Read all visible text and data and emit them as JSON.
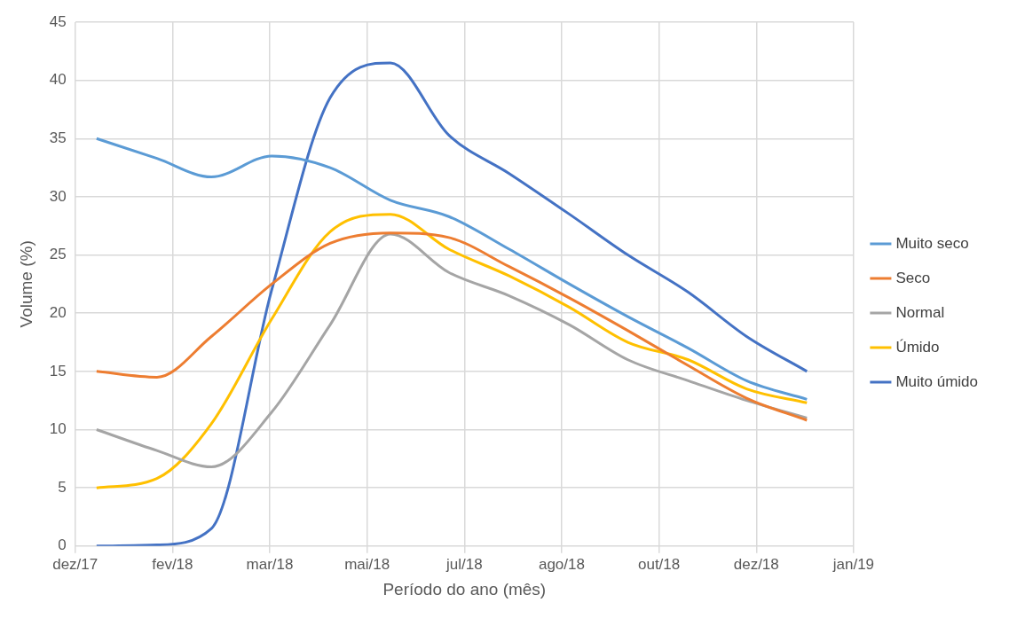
{
  "chart_data": {
    "type": "line",
    "xlabel": "Período do ano (mês)",
    "ylabel": "Volume (%)",
    "x": [
      "2018-01-01",
      "2018-02-01",
      "2018-03-01",
      "2018-04-01",
      "2018-05-01",
      "2018-06-01",
      "2018-07-01",
      "2018-08-01",
      "2018-09-01",
      "2018-10-01",
      "2018-11-01",
      "2018-12-01",
      "2019-01-01"
    ],
    "series": [
      {
        "name": "Muito seco",
        "color": "#5b9bd5",
        "values": [
          35,
          33.3,
          31.7,
          33.5,
          32.5,
          29.7,
          28.3,
          25.5,
          22.5,
          19.7,
          17,
          14.2,
          12.6
        ]
      },
      {
        "name": "Seco",
        "color": "#ed7d31",
        "values": [
          15,
          14.5,
          18,
          22.5,
          26,
          26.9,
          26.5,
          24,
          21.3,
          18.5,
          15.5,
          12.7,
          10.8
        ]
      },
      {
        "name": "Normal",
        "color": "#a5a5a5",
        "values": [
          10,
          8.2,
          6.8,
          11.5,
          19,
          26.8,
          23.5,
          21.5,
          19,
          16,
          14.2,
          12.5,
          11
        ]
      },
      {
        "name": "Úmido",
        "color": "#ffc000",
        "values": [
          5,
          5.8,
          10.5,
          19.5,
          27,
          28.5,
          25.5,
          23.2,
          20.5,
          17.5,
          16,
          13.5,
          12.3
        ]
      },
      {
        "name": "Muito úmido",
        "color": "#4472c4",
        "values": [
          0,
          0.1,
          1.5,
          22,
          38.5,
          41.5,
          35.3,
          32,
          28.5,
          25,
          21.8,
          18,
          15
        ]
      }
    ],
    "xlim": [
      "2017-12-21",
      "2019-01-25"
    ],
    "xticks": [
      {
        "value": "2017-12-21",
        "label": "dez/17"
      },
      {
        "value": "2018-02-09",
        "label": "fev/18"
      },
      {
        "value": "2018-03-31",
        "label": "mar/18"
      },
      {
        "value": "2018-05-20",
        "label": "mai/18"
      },
      {
        "value": "2018-07-09",
        "label": "jul/18"
      },
      {
        "value": "2018-08-28",
        "label": "ago/18"
      },
      {
        "value": "2018-10-17",
        "label": "out/18"
      },
      {
        "value": "2018-12-06",
        "label": "dez/18"
      },
      {
        "value": "2019-01-25",
        "label": "jan/19"
      }
    ],
    "ylim": [
      0,
      45
    ],
    "yticks": [
      0,
      5,
      10,
      15,
      20,
      25,
      30,
      35,
      40,
      45
    ],
    "grid": true,
    "legend": "right",
    "marker": "none",
    "line_style": "solid"
  }
}
